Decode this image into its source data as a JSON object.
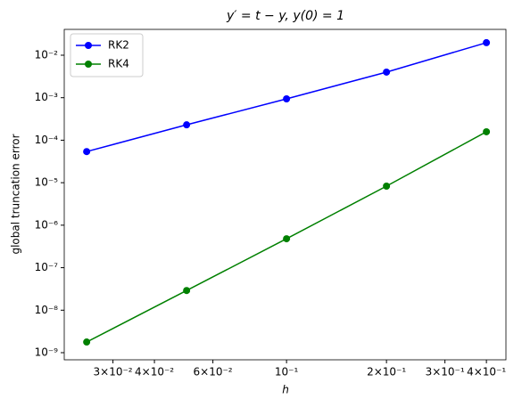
{
  "chart_data": {
    "type": "line",
    "title": "y′ = t − y, y(0) = 1",
    "x_label": "h",
    "y_label": "global truncation error",
    "x": [
      0.025,
      0.05,
      0.1,
      0.2,
      0.4
    ],
    "series": [
      {
        "name": "RK2",
        "color": "#0000ff",
        "values": [
          5.4e-05,
          0.00023,
          0.00094,
          0.004,
          0.0197
        ]
      },
      {
        "name": "RK4",
        "color": "#008000",
        "values": [
          1.78e-09,
          2.9e-08,
          4.8e-07,
          8.3e-06,
          0.000158
        ]
      }
    ],
    "xscale": "log",
    "yscale": "log",
    "xlim": [
      0.0214,
      0.458
    ],
    "ylim": [
      6.8e-10,
      0.0405
    ],
    "xticks": [
      {
        "value": 0.03,
        "label": "3×10⁻²"
      },
      {
        "value": 0.04,
        "label": "4×10⁻²"
      },
      {
        "value": 0.06,
        "label": "6×10⁻²"
      },
      {
        "value": 0.1,
        "label": "10⁻¹"
      },
      {
        "value": 0.2,
        "label": "2×10⁻¹"
      },
      {
        "value": 0.3,
        "label": "3×10⁻¹"
      },
      {
        "value": 0.4,
        "label": "4×10⁻¹"
      }
    ],
    "yticks": [
      {
        "value": 1e-09,
        "label": "10⁻⁹"
      },
      {
        "value": 1e-08,
        "label": "10⁻⁸"
      },
      {
        "value": 1e-07,
        "label": "10⁻⁷"
      },
      {
        "value": 1e-06,
        "label": "10⁻⁶"
      },
      {
        "value": 1e-05,
        "label": "10⁻⁵"
      },
      {
        "value": 0.0001,
        "label": "10⁻⁴"
      },
      {
        "value": 0.001,
        "label": "10⁻³"
      },
      {
        "value": 0.01,
        "label": "10⁻²"
      }
    ],
    "legend": "upper left"
  }
}
